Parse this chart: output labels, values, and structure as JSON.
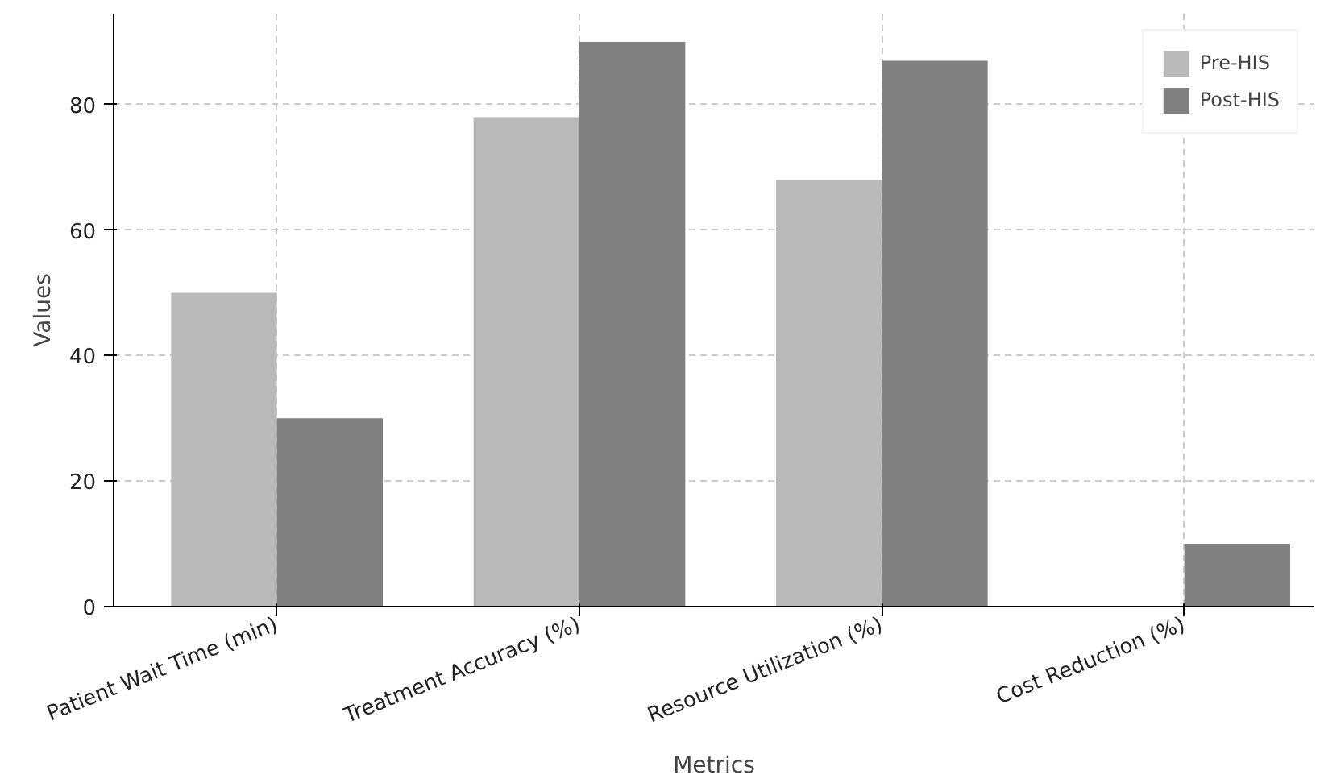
{
  "chart_data": {
    "type": "bar",
    "xlabel": "Metrics",
    "ylabel": "Values",
    "categories": [
      "Patient Wait Time (min)",
      "Treatment Accuracy (%)",
      "Resource Utilization (%)",
      "Cost Reduction (%)"
    ],
    "series": [
      {
        "name": "Pre-HIS",
        "color": "#b9b9b9",
        "values": [
          50,
          78,
          68,
          0
        ]
      },
      {
        "name": "Post-HIS",
        "color": "#808080",
        "values": [
          30,
          90,
          87,
          10
        ]
      }
    ],
    "ylim": [
      0,
      94.5
    ],
    "yticks": [
      0,
      20,
      40,
      60,
      80
    ],
    "grid": true,
    "legend": "top right"
  }
}
